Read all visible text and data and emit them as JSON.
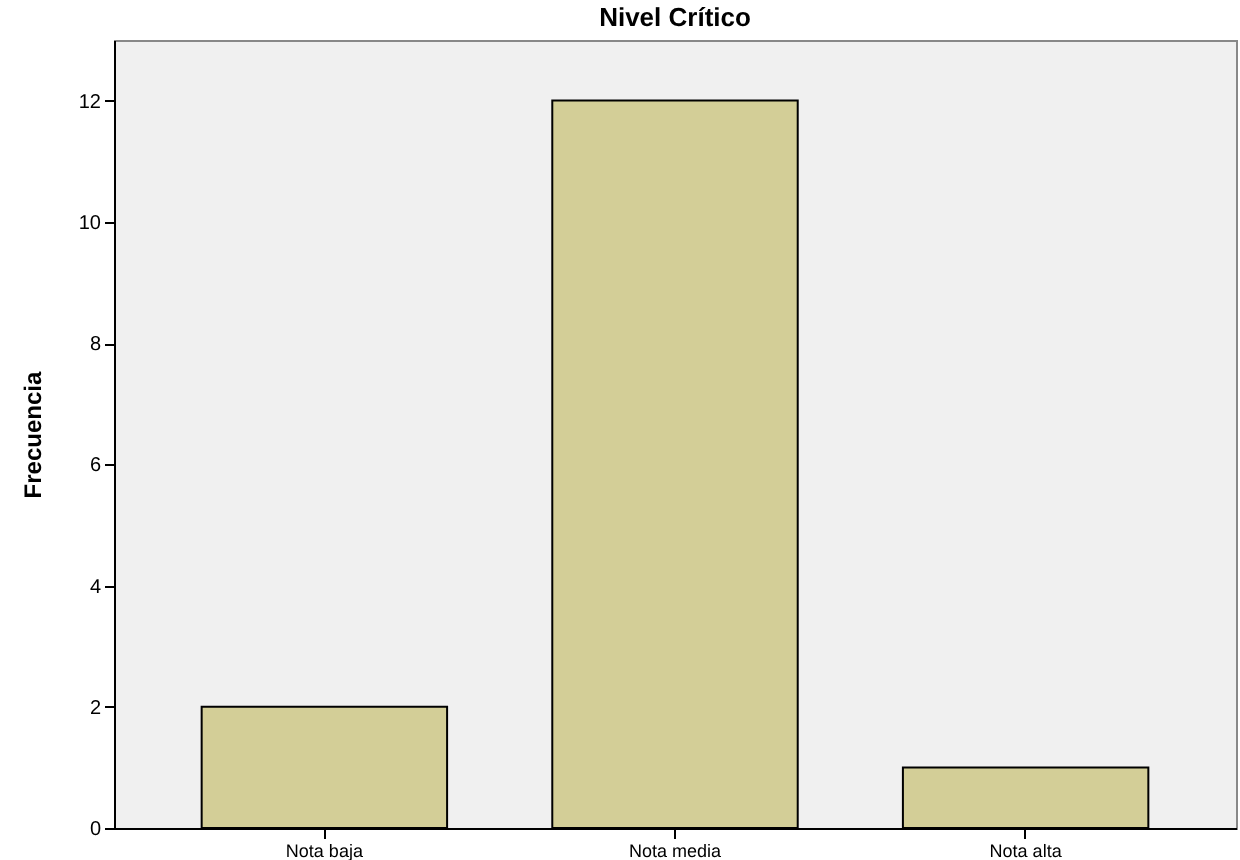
{
  "chart_data": {
    "type": "bar",
    "title": "Nivel Crítico",
    "ylabel": "Frecuencia",
    "categories": [
      "Nota baja",
      "Nota media",
      "Nota alta"
    ],
    "values": [
      2,
      12,
      1
    ],
    "color": "#d3ce97",
    "ylim": [
      0,
      13
    ],
    "yticks": [
      0,
      2,
      4,
      6,
      8,
      10,
      12
    ],
    "grid": false
  }
}
